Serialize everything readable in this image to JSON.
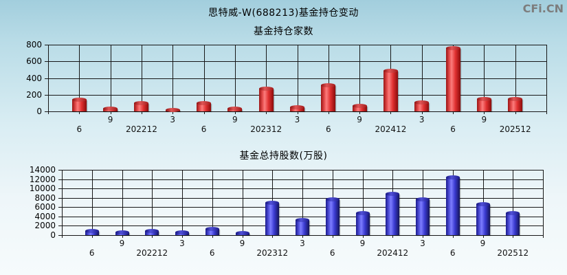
{
  "page": {
    "title": "思特威-W(688213)基金持仓变动",
    "watermark": "CFi.CN"
  },
  "colors": {
    "background_top": "#a2cedd",
    "background_bottom": "#f6fbfc",
    "grid": "#161616",
    "red_bar": "#e03030",
    "blue_bar": "#3a3ad0",
    "title_text": "#000000",
    "watermark_text": "#7d7d7d"
  },
  "chart_data": [
    {
      "type": "bar",
      "title": "基金持仓家数",
      "categories": [
        "6",
        "9",
        "202212",
        "3",
        "6",
        "9",
        "202312",
        "3",
        "6",
        "9",
        "202412",
        "3",
        "6",
        "9",
        "202512"
      ],
      "values": [
        140,
        30,
        100,
        15,
        95,
        30,
        270,
        50,
        310,
        70,
        485,
        110,
        755,
        145,
        145
      ],
      "yticks": [
        0,
        200,
        400,
        600,
        800
      ],
      "ylim": [
        0,
        800
      ],
      "xlabel": "",
      "ylabel": "",
      "grid": true,
      "legend": "none",
      "bar_color": "red"
    },
    {
      "type": "bar",
      "title": "基金总持股数(万股)",
      "categories": [
        "6",
        "9",
        "202212",
        "3",
        "6",
        "9",
        "202312",
        "3",
        "6",
        "9",
        "202412",
        "3",
        "6",
        "9",
        "202512"
      ],
      "values": [
        900,
        650,
        900,
        650,
        1350,
        400,
        6900,
        3200,
        7600,
        4700,
        8900,
        7600,
        12400,
        6600,
        4700
      ],
      "yticks": [
        0,
        2000,
        4000,
        6000,
        8000,
        10000,
        12000,
        14000
      ],
      "ylim": [
        0,
        14000
      ],
      "xlabel": "",
      "ylabel": "",
      "grid": true,
      "legend": "none",
      "bar_color": "blue"
    }
  ]
}
